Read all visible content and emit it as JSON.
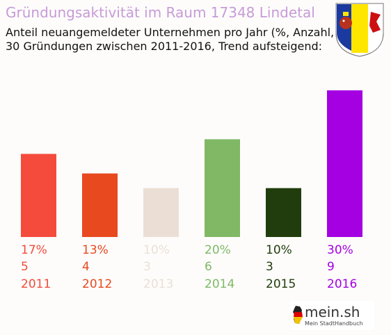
{
  "header": {
    "title": "Gründungsaktivität im Raum 17348 Lindetal",
    "subtitle_line1": "Anteil neuangemeldeter Unternehmen pro Jahr (%, Anzahl, Jahr)",
    "subtitle_line2": "30 Gründungen zwischen 2011-2016, Trend aufsteigend:"
  },
  "crest": {
    "icon": "coat-of-arms-icon",
    "colors": [
      "#1a3aa0",
      "#ffe600",
      "#cc1010"
    ]
  },
  "chart_data": {
    "type": "bar",
    "categories": [
      "2011",
      "2012",
      "2013",
      "2014",
      "2015",
      "2016"
    ],
    "values": [
      17,
      13,
      10,
      20,
      10,
      30
    ],
    "counts": [
      5,
      4,
      3,
      6,
      3,
      9
    ],
    "percent_labels": [
      "17%",
      "13%",
      "10%",
      "20%",
      "10%",
      "30%"
    ],
    "colors": [
      "#f44b3c",
      "#e8491f",
      "#ebdfd5",
      "#80b866",
      "#223d0d",
      "#a400e2"
    ],
    "title": "",
    "xlabel": "",
    "ylabel": "",
    "ylim": [
      0,
      30
    ],
    "grid": false
  },
  "brand": {
    "name": "mein.sh",
    "tagline": "Mein StadtHandbuch",
    "icon": "germany-map-icon"
  }
}
